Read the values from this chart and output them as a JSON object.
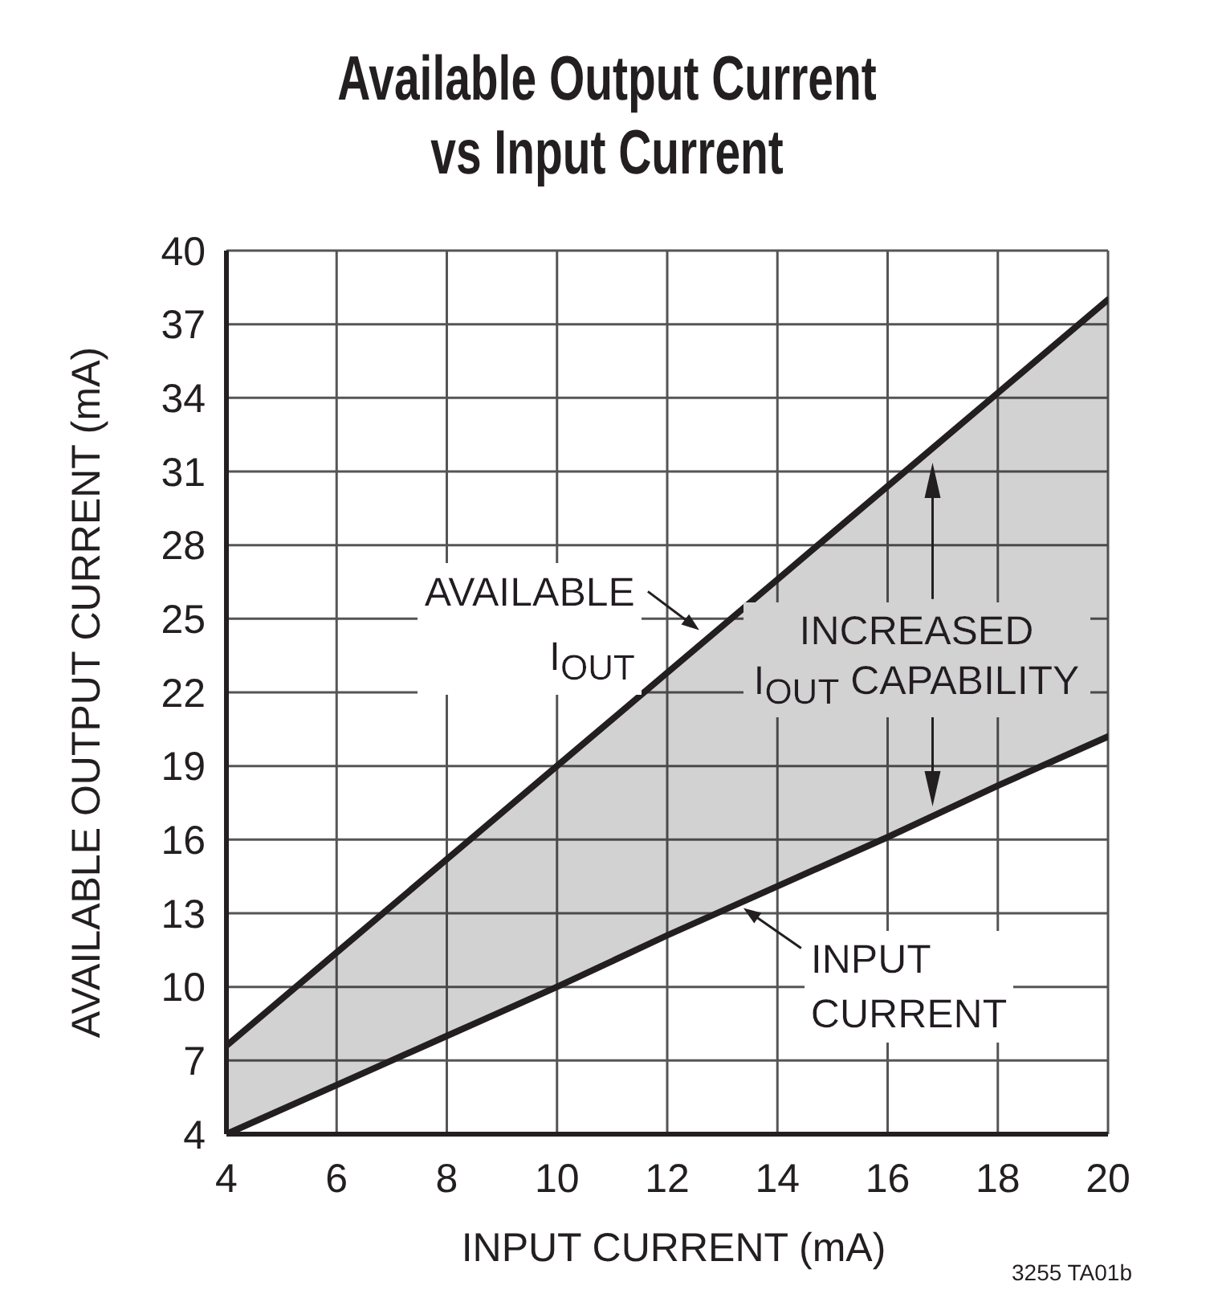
{
  "chart_data": {
    "type": "line",
    "title": "Available Output Current\nvs Input Current",
    "xlabel": "INPUT CURRENT (mA)",
    "ylabel": "AVAILABLE OUTPUT CURRENT (mA)",
    "x": [
      4,
      6,
      8,
      10,
      12,
      14,
      16,
      18,
      20
    ],
    "series": [
      {
        "name": "AVAILABLE I$_{OUT}$",
        "color": "#231f20",
        "values": [
          7.6,
          11.4,
          15.2,
          19,
          22.8,
          26.6,
          30.4,
          34.2,
          38
        ],
        "lower": [
          4,
          6,
          8,
          10,
          12.1,
          14.1,
          16.1,
          18.2,
          20.2
        ],
        "upper": [
          7.6,
          11.4,
          15.2,
          19,
          22.8,
          26.6,
          30.4,
          34.2,
          38
        ]
      },
      {
        "name": "INPUT CURRENT",
        "color": "#231f20",
        "values": [
          4,
          6,
          8,
          10,
          12.1,
          14.1,
          16.1,
          18.2,
          20.2
        ]
      }
    ],
    "xlim": [
      4,
      20
    ],
    "xticks": [
      4,
      6,
      8,
      10,
      12,
      14,
      16,
      18,
      20
    ],
    "ylim": [
      4,
      40
    ],
    "yticks": [
      4,
      7,
      10,
      13,
      16,
      19,
      22,
      25,
      28,
      31,
      34,
      37,
      40
    ],
    "grid": true,
    "annotations": [
      "INCREASED I$_{OUT}$ CAPABILITY",
      "3255 TA01b"
    ]
  }
}
